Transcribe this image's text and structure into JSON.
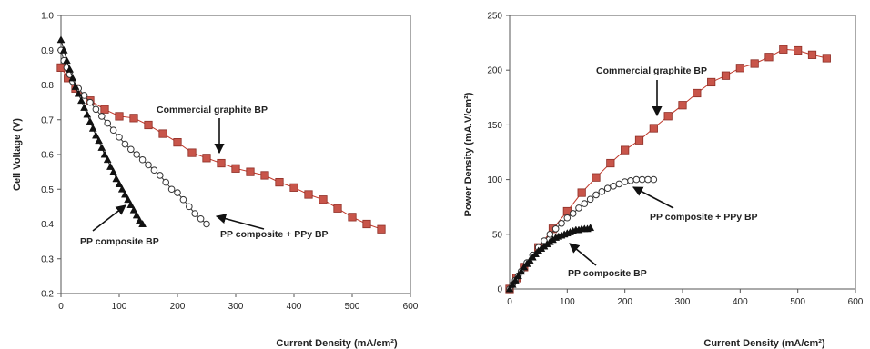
{
  "chart_data": [
    {
      "type": "line",
      "xlabel": "Current Density (mA/cm²)",
      "ylabel": "Cell Voltage (V)",
      "xlim": [
        0,
        600
      ],
      "ylim": [
        0.2,
        1.0
      ],
      "xticks": [
        "0",
        "100",
        "200",
        "300",
        "400",
        "500",
        "600"
      ],
      "yticks": [
        "0.2",
        "0.3",
        "0.4",
        "0.5",
        "0.6",
        "0.7",
        "0.8",
        "0.9",
        "1.0"
      ],
      "series": [
        {
          "name": "Commercial graphite BP",
          "marker": "square",
          "color": "#c0392b",
          "x": [
            0,
            12,
            25,
            50,
            75,
            100,
            125,
            150,
            175,
            200,
            225,
            250,
            275,
            300,
            325,
            350,
            375,
            400,
            425,
            450,
            475,
            500,
            525,
            550
          ],
          "y": [
            0.85,
            0.82,
            0.79,
            0.755,
            0.73,
            0.71,
            0.705,
            0.685,
            0.66,
            0.635,
            0.605,
            0.59,
            0.575,
            0.56,
            0.55,
            0.54,
            0.52,
            0.505,
            0.485,
            0.47,
            0.445,
            0.42,
            0.4,
            0.385
          ]
        },
        {
          "name": "PP composite + PPy BP",
          "marker": "circle",
          "color": "#333333",
          "x": [
            0,
            5,
            10,
            15,
            20,
            30,
            40,
            50,
            60,
            70,
            80,
            90,
            100,
            110,
            120,
            130,
            140,
            150,
            160,
            170,
            180,
            190,
            200,
            210,
            220,
            230,
            240,
            250
          ],
          "y": [
            0.9,
            0.87,
            0.85,
            0.83,
            0.81,
            0.79,
            0.77,
            0.75,
            0.73,
            0.71,
            0.69,
            0.67,
            0.65,
            0.63,
            0.615,
            0.6,
            0.585,
            0.57,
            0.555,
            0.54,
            0.52,
            0.5,
            0.49,
            0.47,
            0.45,
            0.43,
            0.415,
            0.4
          ]
        },
        {
          "name": "PP composite BP",
          "marker": "triangle",
          "color": "#111111",
          "x": [
            0,
            5,
            10,
            15,
            20,
            25,
            30,
            35,
            40,
            45,
            50,
            55,
            60,
            65,
            70,
            75,
            80,
            85,
            90,
            95,
            100,
            105,
            110,
            115,
            120,
            125,
            130,
            135,
            140
          ],
          "y": [
            0.93,
            0.9,
            0.87,
            0.845,
            0.82,
            0.795,
            0.775,
            0.755,
            0.735,
            0.715,
            0.695,
            0.675,
            0.655,
            0.64,
            0.62,
            0.6,
            0.585,
            0.565,
            0.55,
            0.53,
            0.515,
            0.5,
            0.485,
            0.47,
            0.455,
            0.44,
            0.425,
            0.41,
            0.4
          ]
        }
      ],
      "annotations": [
        {
          "text": "Commercial graphite BP",
          "series": "Commercial graphite BP"
        },
        {
          "text": "PP composite + PPy BP",
          "series": "PP composite + PPy BP"
        },
        {
          "text": "PP composite BP",
          "series": "PP composite BP"
        }
      ]
    },
    {
      "type": "line",
      "xlabel": "Current Density (mA/cm²)",
      "ylabel": "Power Density (mA.V/cm²)",
      "xlim": [
        0,
        600
      ],
      "ylim": [
        0,
        250
      ],
      "xticks": [
        "0",
        "100",
        "200",
        "300",
        "400",
        "500",
        "600"
      ],
      "yticks": [
        "0",
        "50",
        "100",
        "150",
        "200",
        "250"
      ],
      "series": [
        {
          "name": "Commercial graphite BP",
          "marker": "square",
          "color": "#c0392b",
          "x": [
            0,
            12,
            25,
            50,
            75,
            100,
            125,
            150,
            175,
            200,
            225,
            250,
            275,
            300,
            325,
            350,
            375,
            400,
            425,
            450,
            475,
            500,
            525,
            550
          ],
          "y": [
            0,
            10,
            20,
            38,
            55,
            71,
            88,
            102,
            115,
            127,
            136,
            147,
            158,
            168,
            179,
            189,
            195,
            202,
            206,
            212,
            219,
            218,
            214,
            211
          ]
        },
        {
          "name": "PP composite + PPy BP",
          "marker": "circle",
          "color": "#333333",
          "x": [
            0,
            5,
            10,
            15,
            20,
            30,
            40,
            50,
            60,
            70,
            80,
            90,
            100,
            110,
            120,
            130,
            140,
            150,
            160,
            170,
            180,
            190,
            200,
            210,
            220,
            230,
            240,
            250
          ],
          "y": [
            0,
            4,
            8,
            12,
            16,
            24,
            31,
            38,
            44,
            50,
            55,
            60,
            65,
            69,
            74,
            78,
            82,
            86,
            89,
            92,
            94,
            96,
            98,
            99,
            100,
            100,
            100,
            100
          ]
        },
        {
          "name": "PP composite BP",
          "marker": "triangle",
          "color": "#111111",
          "x": [
            0,
            5,
            10,
            15,
            20,
            25,
            30,
            35,
            40,
            45,
            50,
            55,
            60,
            65,
            70,
            75,
            80,
            85,
            90,
            95,
            100,
            105,
            110,
            115,
            120,
            125,
            130,
            135,
            140
          ],
          "y": [
            0,
            4,
            8,
            12,
            16,
            20,
            23,
            26,
            29,
            32,
            35,
            37,
            39,
            41,
            43,
            45,
            47,
            48,
            49,
            50,
            51,
            52,
            53,
            54,
            54,
            55,
            55,
            55,
            56
          ]
        }
      ],
      "annotations": [
        {
          "text": "Commercial graphite BP",
          "series": "Commercial graphite BP"
        },
        {
          "text": "PP composite + PPy BP",
          "series": "PP composite + PPy BP"
        },
        {
          "text": "PP composite BP",
          "series": "PP composite BP"
        }
      ]
    }
  ]
}
